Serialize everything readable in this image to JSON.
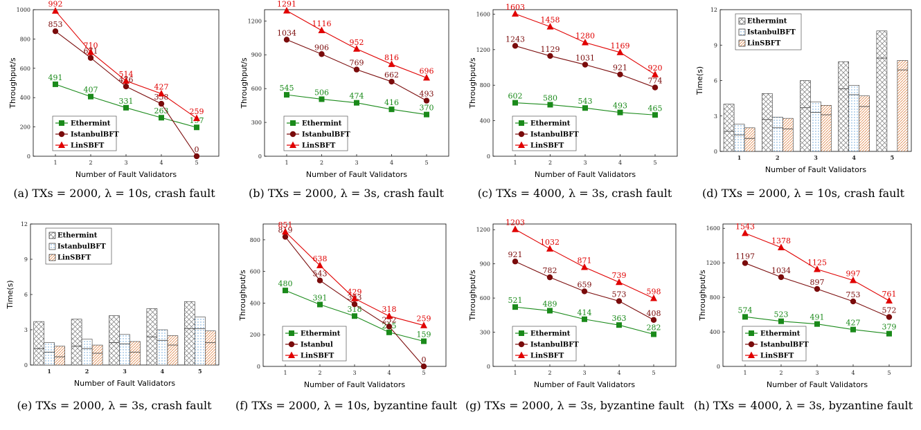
{
  "colors": {
    "Ethermint": "#1a8a1a",
    "IstanbulBFT": "#7a0b0b",
    "LinSBFT": "#e00000"
  },
  "chart_data": [
    {
      "type": "line",
      "panel": "a",
      "caption": "(a) TXs = 2000, λ = 10s, crash fault",
      "x": [
        1,
        2,
        3,
        4,
        5
      ],
      "xlabel": "Number of Fault Validators",
      "ylabel": "Throughput/s",
      "ylim": [
        0,
        1000
      ],
      "yticks": [
        0,
        200,
        400,
        600,
        800,
        1000
      ],
      "legend": "bottom-left",
      "series": [
        {
          "name": "Ethermint",
          "color": "#1a8a1a",
          "marker": "square",
          "values": [
            491,
            407,
            331,
            263,
            197
          ]
        },
        {
          "name": "IstanbulBFT",
          "color": "#7a0b0b",
          "marker": "circle",
          "values": [
            853,
            671,
            476,
            358,
            0
          ]
        },
        {
          "name": "LinSBFT",
          "color": "#e00000",
          "marker": "triangle",
          "values": [
            992,
            710,
            514,
            427,
            259
          ]
        }
      ]
    },
    {
      "type": "line",
      "panel": "b",
      "caption": "(b) TXs = 2000, λ = 3s, crash fault",
      "x": [
        1,
        2,
        3,
        4,
        5
      ],
      "xlabel": "Number of Fault Validators",
      "ylabel": "Throughput/s",
      "ylim": [
        0,
        1300
      ],
      "yticks": [
        0,
        300,
        600,
        900,
        1200
      ],
      "legend": "bottom-left",
      "series": [
        {
          "name": "Ethermint",
          "color": "#1a8a1a",
          "marker": "square",
          "values": [
            545,
            506,
            474,
            416,
            370
          ]
        },
        {
          "name": "IstanbulBFT",
          "color": "#7a0b0b",
          "marker": "circle",
          "values": [
            1034,
            906,
            769,
            662,
            493
          ]
        },
        {
          "name": "LinSBFT",
          "color": "#e00000",
          "marker": "triangle",
          "values": [
            1291,
            1116,
            952,
            816,
            696
          ]
        }
      ]
    },
    {
      "type": "line",
      "panel": "c",
      "caption": "(c) TXs = 4000, λ = 3s, crash fault",
      "x": [
        1,
        2,
        3,
        4,
        5
      ],
      "xlabel": "Number of Fault Validators",
      "ylabel": "Throughput/s",
      "ylim": [
        0,
        1650
      ],
      "yticks": [
        0,
        400,
        800,
        1200,
        1600
      ],
      "legend": "bottom-left",
      "series": [
        {
          "name": "Ethermint",
          "color": "#1a8a1a",
          "marker": "square",
          "values": [
            602,
            580,
            543,
            493,
            465
          ]
        },
        {
          "name": "IstanbulBFT",
          "color": "#7a0b0b",
          "marker": "circle",
          "values": [
            1243,
            1129,
            1031,
            921,
            774
          ]
        },
        {
          "name": "LinSBFT",
          "color": "#e00000",
          "marker": "triangle",
          "values": [
            1603,
            1458,
            1280,
            1169,
            920
          ]
        }
      ]
    },
    {
      "type": "bar",
      "panel": "d",
      "caption": "(d) TXs = 2000, λ = 10s, crash fault",
      "categories": [
        "1",
        "2",
        "3",
        "4",
        "5"
      ],
      "xlabel": "Number of Fault Validators",
      "ylabel": "Time(s)",
      "ylim": [
        0,
        12
      ],
      "yticks": [
        0,
        3,
        6,
        9,
        12
      ],
      "legend": "top-left",
      "series": [
        {
          "name": "Ethermint",
          "color": "#8c8c8c",
          "pattern": "cross",
          "values": [
            4.0,
            4.9,
            6.0,
            7.6,
            10.2
          ],
          "split": [
            1.7,
            2.7,
            3.7,
            5.3,
            7.9
          ]
        },
        {
          "name": "IstanbulBFT",
          "color": "#5b9bd5",
          "pattern": "dots",
          "values": [
            2.3,
            2.9,
            4.2,
            5.6,
            null
          ],
          "split": [
            1.4,
            2.0,
            3.3,
            4.8,
            null
          ]
        },
        {
          "name": "LinSBFT",
          "color": "#e08a50",
          "pattern": "stripes",
          "values": [
            2.0,
            2.8,
            3.9,
            4.7,
            7.7
          ],
          "split": [
            1.1,
            1.9,
            3.1,
            3.8,
            6.9
          ]
        }
      ]
    },
    {
      "type": "bar",
      "panel": "e",
      "caption": "(e) TXs = 2000, λ = 3s, crash fault",
      "categories": [
        "1",
        "2",
        "3",
        "4",
        "5"
      ],
      "xlabel": "Number of Fault Validators",
      "ylabel": "Time(s)",
      "ylim": [
        0,
        12
      ],
      "yticks": [
        0,
        3,
        6,
        9,
        12
      ],
      "legend": "top-left",
      "series": [
        {
          "name": "Ethermint",
          "color": "#8c8c8c",
          "pattern": "cross",
          "values": [
            3.7,
            3.9,
            4.2,
            4.8,
            5.4
          ],
          "split": [
            1.4,
            1.6,
            1.9,
            2.4,
            3.1
          ]
        },
        {
          "name": "IstanbulBFT",
          "color": "#5b9bd5",
          "pattern": "dots",
          "values": [
            1.9,
            2.2,
            2.6,
            3.0,
            4.1
          ],
          "split": [
            1.1,
            1.4,
            1.8,
            2.1,
            3.1
          ]
        },
        {
          "name": "LinSBFT",
          "color": "#e08a50",
          "pattern": "stripes",
          "values": [
            1.6,
            1.7,
            2.0,
            2.5,
            2.9
          ],
          "split": [
            0.7,
            1.0,
            1.1,
            1.7,
            1.9
          ]
        }
      ]
    },
    {
      "type": "line",
      "panel": "f",
      "caption": "(f) TXs = 2000, λ = 10s, byzantine fault",
      "x": [
        1,
        2,
        3,
        4,
        5
      ],
      "xlabel": "Number of Fault Validators",
      "ylabel": "Throughput/s",
      "ylim": [
        0,
        900
      ],
      "yticks": [
        0,
        200,
        400,
        600,
        800
      ],
      "legend": "bottom-left",
      "series": [
        {
          "name": "Ethermint",
          "color": "#1a8a1a",
          "marker": "square",
          "values": [
            480,
            391,
            318,
            215,
            159
          ]
        },
        {
          "name": "Istanbul",
          "color": "#7a0b0b",
          "marker": "circle",
          "values": [
            819,
            543,
            393,
            252,
            0
          ]
        },
        {
          "name": "LinSBFT",
          "color": "#e00000",
          "marker": "triangle",
          "values": [
            851,
            638,
            429,
            318,
            259
          ]
        }
      ]
    },
    {
      "type": "line",
      "panel": "g",
      "caption": "(g) TXs = 2000, λ = 3s, byzantine fault",
      "x": [
        1,
        2,
        3,
        4,
        5
      ],
      "xlabel": "Number of Fault Validators",
      "ylabel": "Throughput/s",
      "ylim": [
        0,
        1250
      ],
      "yticks": [
        0,
        300,
        600,
        900,
        1200
      ],
      "legend": "bottom-left",
      "series": [
        {
          "name": "Ethermint",
          "color": "#1a8a1a",
          "marker": "square",
          "values": [
            521,
            489,
            414,
            363,
            282
          ]
        },
        {
          "name": "IstanbulBFT",
          "color": "#7a0b0b",
          "marker": "circle",
          "values": [
            921,
            782,
            659,
            573,
            408
          ]
        },
        {
          "name": "LinSBFT",
          "color": "#e00000",
          "marker": "triangle",
          "values": [
            1203,
            1032,
            871,
            739,
            598
          ]
        }
      ]
    },
    {
      "type": "line",
      "panel": "h",
      "caption": "(h) TXs = 4000, λ = 3s, byzantine fault",
      "x": [
        1,
        2,
        3,
        4,
        5
      ],
      "xlabel": "Number of Fault Validators",
      "ylabel": "Throughput/s",
      "ylim": [
        0,
        1650
      ],
      "yticks": [
        0,
        400,
        800,
        1200,
        1600
      ],
      "legend": "bottom-left",
      "series": [
        {
          "name": "Ethermint",
          "color": "#1a8a1a",
          "marker": "square",
          "values": [
            574,
            523,
            491,
            427,
            379
          ]
        },
        {
          "name": "IstanbulBFT",
          "color": "#7a0b0b",
          "marker": "circle",
          "values": [
            1197,
            1034,
            897,
            753,
            572
          ]
        },
        {
          "name": "LinSBFT",
          "color": "#e00000",
          "marker": "triangle",
          "values": [
            1543,
            1378,
            1125,
            997,
            761
          ]
        }
      ]
    }
  ]
}
